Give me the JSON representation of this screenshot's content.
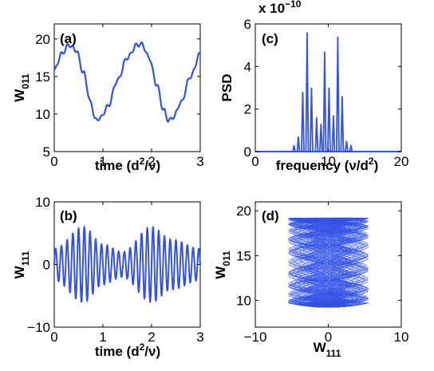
{
  "chart_data": [
    {
      "id": "a",
      "type": "line",
      "panel_label": "(a)",
      "xlabel": "time (d",
      "xlabel_sup": "2",
      "xlabel_tail": "/ν)",
      "ylabel": "W",
      "ylabel_sub": "011",
      "xlim": [
        0,
        3
      ],
      "ylim": [
        5,
        22
      ],
      "xticks": [
        0,
        1,
        2,
        3
      ],
      "yticks": [
        5,
        10,
        15,
        20
      ],
      "color": "#3352e6",
      "description_series": "oscillation period ~1.5, range ~9 to ~19.5 with small ripples",
      "series": [
        {
          "x": [
            0,
            0.15,
            0.3,
            0.45,
            0.6,
            0.75,
            0.85,
            0.95,
            1.1,
            1.3,
            1.5,
            1.7,
            1.8,
            1.95,
            2.1,
            2.25,
            2.35,
            2.45,
            2.6,
            2.8,
            3.0
          ],
          "y": [
            15.8,
            18.0,
            19.2,
            18.5,
            15.5,
            11.5,
            9.2,
            9.5,
            11.0,
            14.5,
            17.5,
            19.2,
            19.3,
            17.5,
            14.0,
            10.5,
            9.1,
            9.6,
            11.5,
            15.0,
            18.0
          ]
        }
      ]
    },
    {
      "id": "b",
      "type": "line",
      "panel_label": "(b)",
      "xlabel": "time (d",
      "xlabel_sup": "2",
      "xlabel_tail": "/ν)",
      "ylabel": "W",
      "ylabel_sub": "111",
      "xlim": [
        0,
        3
      ],
      "ylim": [
        -10,
        10
      ],
      "xticks": [
        0,
        1,
        2,
        3
      ],
      "yticks": [
        -10,
        0,
        10
      ],
      "color": "#3352e6",
      "series": [
        {
          "x_frequency": 8.5,
          "amplitude_envelope": [
            [
              0,
              2.5
            ],
            [
              0.6,
              6
            ],
            [
              1.0,
              3.2
            ],
            [
              1.4,
              2
            ],
            [
              2.0,
              6
            ],
            [
              2.4,
              4
            ],
            [
              3.0,
              2.5
            ]
          ]
        }
      ]
    },
    {
      "id": "c",
      "type": "line",
      "panel_label": "(c)",
      "xlabel": "frequency (ν/d",
      "xlabel_sup": "2",
      "xlabel_tail": ")",
      "ylabel": "PSD",
      "exponent_label": "x 10",
      "exponent_sup": "−10",
      "xlim": [
        0,
        20
      ],
      "ylim": [
        0,
        6
      ],
      "xticks": [
        0,
        10,
        20
      ],
      "yticks": [
        0,
        2,
        4,
        6
      ],
      "color": "#3352e6",
      "peaks": [
        {
          "x": 5.3,
          "y": 0.3
        },
        {
          "x": 5.9,
          "y": 0.7
        },
        {
          "x": 6.5,
          "y": 2.8
        },
        {
          "x": 7.1,
          "y": 5.6
        },
        {
          "x": 7.7,
          "y": 3.0
        },
        {
          "x": 8.4,
          "y": 1.6
        },
        {
          "x": 9.0,
          "y": 1.3
        },
        {
          "x": 9.5,
          "y": 4.7
        },
        {
          "x": 10.1,
          "y": 3.0
        },
        {
          "x": 10.7,
          "y": 1.7
        },
        {
          "x": 11.3,
          "y": 5.4
        },
        {
          "x": 11.9,
          "y": 2.6
        },
        {
          "x": 12.5,
          "y": 0.5
        },
        {
          "x": 13.1,
          "y": 0.3
        }
      ]
    },
    {
      "id": "d",
      "type": "scatter",
      "panel_label": "(d)",
      "xlabel": "W",
      "xlabel_sub": "111",
      "ylabel": "W",
      "ylabel_sub": "011",
      "xlim": [
        -10,
        10
      ],
      "ylim": [
        7,
        21
      ],
      "xticks": [
        -10,
        0,
        10
      ],
      "yticks": [
        10,
        15,
        20
      ],
      "color": "#3352e6",
      "description_series": "dense phase portrait filling a barrel shape x in [-6,6], y in [9,19.5]"
    }
  ]
}
